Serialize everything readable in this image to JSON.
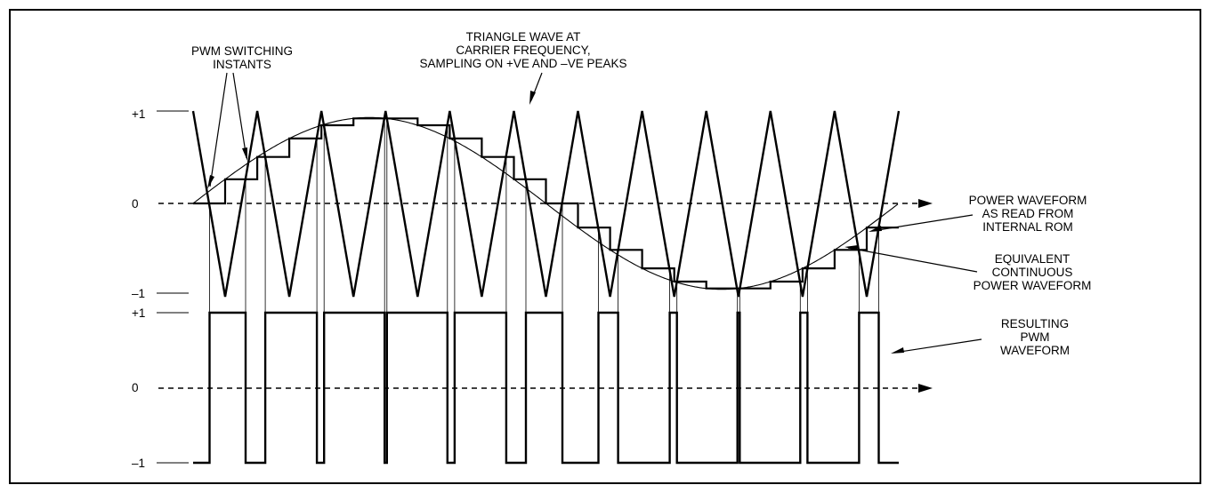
{
  "axis": {
    "upper_ticks": [
      "+1",
      "0",
      "–1"
    ],
    "lower_ticks": [
      "+1",
      "0",
      "–1"
    ]
  },
  "labels": {
    "pwm_switching": [
      "PWM SWITCHING",
      "INSTANTS"
    ],
    "triangle_wave": [
      "TRIANGLE WAVE AT",
      "CARRIER FREQUENCY,",
      "SAMPLING ON +VE AND –VE PEAKS"
    ],
    "rom_waveform": [
      "POWER WAVEFORM",
      "AS READ FROM",
      "INTERNAL ROM"
    ],
    "continuous_waveform": [
      "EQUIVALENT",
      "CONTINUOUS",
      "POWER WAVEFORM"
    ],
    "resulting_pwm": [
      "RESULTING",
      "PWM",
      "WAVEFORM"
    ]
  },
  "chart_data": {
    "type": "line",
    "carrier_cycles": 11,
    "triangle_amplitude": 1,
    "modulating_amplitude": 0.93,
    "series": [
      {
        "values_note": "sine sampled at carrier peaks"
      }
    ]
  }
}
